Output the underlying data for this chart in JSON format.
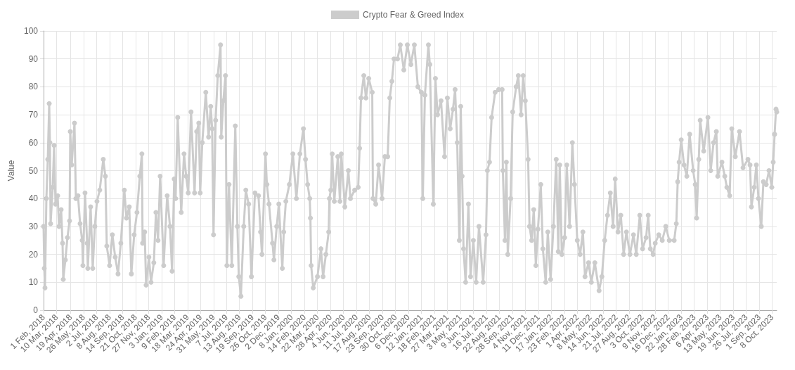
{
  "chart_data": {
    "type": "line",
    "ylabel": "Value",
    "ylim": [
      0,
      100
    ],
    "yticks": [
      0,
      10,
      20,
      30,
      40,
      50,
      60,
      70,
      80,
      90,
      100
    ],
    "xlim": [
      "2018-02-01",
      "2023-10-21"
    ],
    "xticks": [
      {
        "value": "2018-02-01",
        "label": "1 Feb, 2018"
      },
      {
        "value": "2018-03-10",
        "label": "10 Mar, 2018"
      },
      {
        "value": "2018-04-19",
        "label": "19 Apr, 2018"
      },
      {
        "value": "2018-05-26",
        "label": "26 May, 2018"
      },
      {
        "value": "2018-07-02",
        "label": "2 Jul, 2018"
      },
      {
        "value": "2018-08-08",
        "label": "8 Aug, 2018"
      },
      {
        "value": "2018-09-14",
        "label": "14 Sep, 2018"
      },
      {
        "value": "2018-10-21",
        "label": "21 Oct, 2018"
      },
      {
        "value": "2018-11-27",
        "label": "27 Nov, 2018"
      },
      {
        "value": "2019-01-03",
        "label": "3 Jan, 2019"
      },
      {
        "value": "2019-02-09",
        "label": "9 Feb, 2019"
      },
      {
        "value": "2019-03-18",
        "label": "18 Mar, 2019"
      },
      {
        "value": "2019-04-24",
        "label": "24 Apr, 2019"
      },
      {
        "value": "2019-05-31",
        "label": "31 May, 2019"
      },
      {
        "value": "2019-07-07",
        "label": "7 Jul, 2019"
      },
      {
        "value": "2019-08-13",
        "label": "13 Aug, 2019"
      },
      {
        "value": "2019-09-19",
        "label": "19 Sep, 2019"
      },
      {
        "value": "2019-10-26",
        "label": "26 Oct, 2019"
      },
      {
        "value": "2019-12-02",
        "label": "2 Dec, 2019"
      },
      {
        "value": "2020-01-08",
        "label": "8 Jan, 2020"
      },
      {
        "value": "2020-02-14",
        "label": "14 Feb, 2020"
      },
      {
        "value": "2020-03-22",
        "label": "22 Mar, 2020"
      },
      {
        "value": "2020-04-28",
        "label": "28 Apr, 2020"
      },
      {
        "value": "2020-06-04",
        "label": "4 Jun, 2020"
      },
      {
        "value": "2020-07-11",
        "label": "11 Jul, 2020"
      },
      {
        "value": "2020-08-17",
        "label": "17 Aug, 2020"
      },
      {
        "value": "2020-09-23",
        "label": "23 Sep, 2020"
      },
      {
        "value": "2020-10-30",
        "label": "30 Oct, 2020"
      },
      {
        "value": "2020-12-06",
        "label": "6 Dec, 2020"
      },
      {
        "value": "2021-01-12",
        "label": "12 Jan, 2021"
      },
      {
        "value": "2021-02-18",
        "label": "18 Feb, 2021"
      },
      {
        "value": "2021-03-27",
        "label": "27 Mar, 2021"
      },
      {
        "value": "2021-05-03",
        "label": "3 May, 2021"
      },
      {
        "value": "2021-06-09",
        "label": "9 Jun, 2021"
      },
      {
        "value": "2021-07-16",
        "label": "16 Jul, 2021"
      },
      {
        "value": "2021-08-22",
        "label": "22 Aug, 2021"
      },
      {
        "value": "2021-09-28",
        "label": "28 Sep, 2021"
      },
      {
        "value": "2021-11-04",
        "label": "4 Nov, 2021"
      },
      {
        "value": "2021-12-11",
        "label": "11 Dec, 2021"
      },
      {
        "value": "2022-01-17",
        "label": "17 Jan, 2022"
      },
      {
        "value": "2022-02-23",
        "label": "23 Feb, 2022"
      },
      {
        "value": "2022-04-01",
        "label": "1 Apr, 2022"
      },
      {
        "value": "2022-05-08",
        "label": "8 May, 2022"
      },
      {
        "value": "2022-06-14",
        "label": "14 Jun, 2022"
      },
      {
        "value": "2022-07-21",
        "label": "21 Jul, 2022"
      },
      {
        "value": "2022-08-27",
        "label": "27 Aug, 2022"
      },
      {
        "value": "2022-10-03",
        "label": "3 Oct, 2022"
      },
      {
        "value": "2022-11-09",
        "label": "9 Nov, 2022"
      },
      {
        "value": "2022-12-16",
        "label": "16 Dec, 2022"
      },
      {
        "value": "2023-01-22",
        "label": "22 Jan, 2023"
      },
      {
        "value": "2023-02-28",
        "label": "28 Feb, 2023"
      },
      {
        "value": "2023-04-06",
        "label": "6 Apr, 2023"
      },
      {
        "value": "2023-05-13",
        "label": "13 May, 2023"
      },
      {
        "value": "2023-06-19",
        "label": "19 Jun, 2023"
      },
      {
        "value": "2023-07-26",
        "label": "26 Jul, 2023"
      },
      {
        "value": "2023-09-01",
        "label": "1 Sep, 2023"
      },
      {
        "value": "2023-10-08",
        "label": "8 Oct, 2023"
      }
    ],
    "grid": true,
    "legend": "top",
    "marker": "circle",
    "line_style": "solid",
    "series": [
      {
        "name": "Crypto Fear & Greed Index",
        "color": "#cccccc",
        "x": [
          "2018-02-01",
          "2018-02-03",
          "2018-02-05",
          "2018-02-09",
          "2018-02-13",
          "2018-02-17",
          "2018-02-19",
          "2018-02-21",
          "2018-02-27",
          "2018-03-03",
          "2018-03-07",
          "2018-03-13",
          "2018-03-17",
          "2018-03-23",
          "2018-03-27",
          "2018-03-29",
          "2018-04-04",
          "2018-04-10",
          "2018-04-16",
          "2018-04-18",
          "2018-04-22",
          "2018-04-30",
          "2018-05-04",
          "2018-05-10",
          "2018-05-16",
          "2018-05-22",
          "2018-05-24",
          "2018-05-30",
          "2018-06-05",
          "2018-06-07",
          "2018-06-15",
          "2018-06-21",
          "2018-06-27",
          "2018-07-03",
          "2018-07-11",
          "2018-07-21",
          "2018-07-27",
          "2018-07-31",
          "2018-08-08",
          "2018-08-16",
          "2018-08-24",
          "2018-09-01",
          "2018-09-09",
          "2018-09-19",
          "2018-09-25",
          "2018-10-03",
          "2018-10-09",
          "2018-10-17",
          "2018-10-25",
          "2018-11-02",
          "2018-11-08",
          "2018-11-10",
          "2018-11-16",
          "2018-11-20",
          "2018-11-28",
          "2018-12-04",
          "2018-12-12",
          "2018-12-18",
          "2018-12-24",
          "2018-12-30",
          "2019-01-09",
          "2019-01-19",
          "2019-01-27",
          "2019-02-02",
          "2019-02-08",
          "2019-02-12",
          "2019-02-18",
          "2019-02-28",
          "2019-03-08",
          "2019-03-14",
          "2019-03-20",
          "2019-03-28",
          "2019-04-07",
          "2019-04-13",
          "2019-04-19",
          "2019-04-23",
          "2019-04-29",
          "2019-05-09",
          "2019-05-17",
          "2019-05-23",
          "2019-05-27",
          "2019-05-31",
          "2019-06-06",
          "2019-06-12",
          "2019-06-20",
          "2019-06-22",
          "2019-06-28",
          "2019-07-04",
          "2019-07-08",
          "2019-07-14",
          "2019-07-22",
          "2019-08-01",
          "2019-08-07",
          "2019-08-11",
          "2019-08-17",
          "2019-08-25",
          "2019-08-31",
          "2019-09-08",
          "2019-09-16",
          "2019-09-26",
          "2019-10-06",
          "2019-10-12",
          "2019-10-16",
          "2019-10-26",
          "2019-10-30",
          "2019-11-05",
          "2019-11-15",
          "2019-11-19",
          "2019-11-27",
          "2019-12-03",
          "2019-12-13",
          "2019-12-17",
          "2019-12-23",
          "2020-01-02",
          "2020-01-12",
          "2020-01-22",
          "2020-02-01",
          "2020-02-11",
          "2020-02-17",
          "2020-02-23",
          "2020-02-29",
          "2020-03-02",
          "2020-03-04",
          "2020-03-10",
          "2020-03-22",
          "2020-04-01",
          "2020-04-07",
          "2020-04-15",
          "2020-04-23",
          "2020-04-25",
          "2020-04-29",
          "2020-05-03",
          "2020-05-09",
          "2020-05-19",
          "2020-05-25",
          "2020-05-29",
          "2020-06-08",
          "2020-06-18",
          "2020-06-24",
          "2020-07-06",
          "2020-07-16",
          "2020-07-20",
          "2020-07-24",
          "2020-08-01",
          "2020-08-07",
          "2020-08-15",
          "2020-08-25",
          "2020-08-27",
          "2020-09-04",
          "2020-09-12",
          "2020-09-22",
          "2020-09-30",
          "2020-10-08",
          "2020-10-14",
          "2020-10-20",
          "2020-10-26",
          "2020-11-05",
          "2020-11-13",
          "2020-11-23",
          "2020-12-03",
          "2020-12-13",
          "2020-12-23",
          "2021-01-02",
          "2021-01-12",
          "2021-01-16",
          "2021-01-22",
          "2021-02-01",
          "2021-02-05",
          "2021-02-15",
          "2021-02-21",
          "2021-02-27",
          "2021-03-09",
          "2021-03-19",
          "2021-03-27",
          "2021-04-04",
          "2021-04-12",
          "2021-04-18",
          "2021-04-24",
          "2021-04-30",
          "2021-05-04",
          "2021-05-08",
          "2021-05-12",
          "2021-05-18",
          "2021-05-26",
          "2021-06-01",
          "2021-06-09",
          "2021-06-17",
          "2021-06-25",
          "2021-07-07",
          "2021-07-15",
          "2021-07-19",
          "2021-07-25",
          "2021-07-31",
          "2021-08-10",
          "2021-08-20",
          "2021-08-30",
          "2021-09-01",
          "2021-09-07",
          "2021-09-11",
          "2021-09-15",
          "2021-09-23",
          "2021-09-29",
          "2021-10-09",
          "2021-10-15",
          "2021-10-23",
          "2021-10-29",
          "2021-11-04",
          "2021-11-12",
          "2021-11-16",
          "2021-11-22",
          "2021-11-28",
          "2021-12-04",
          "2021-12-10",
          "2021-12-18",
          "2021-12-24",
          "2022-01-01",
          "2022-01-07",
          "2022-01-15",
          "2022-01-23",
          "2022-01-31",
          "2022-02-06",
          "2022-02-10",
          "2022-02-16",
          "2022-02-24",
          "2022-03-02",
          "2022-03-10",
          "2022-03-18",
          "2022-03-24",
          "2022-04-01",
          "2022-04-09",
          "2022-04-17",
          "2022-04-23",
          "2022-05-03",
          "2022-05-11",
          "2022-05-21",
          "2022-06-02",
          "2022-06-10",
          "2022-06-18",
          "2022-06-26",
          "2022-07-04",
          "2022-07-12",
          "2022-07-18",
          "2022-07-26",
          "2022-08-03",
          "2022-08-11",
          "2022-08-19",
          "2022-08-29",
          "2022-09-08",
          "2022-09-16",
          "2022-09-26",
          "2022-10-04",
          "2022-10-14",
          "2022-10-20",
          "2022-10-26",
          "2022-11-03",
          "2022-11-09",
          "2022-11-19",
          "2022-11-29",
          "2022-12-09",
          "2022-12-19",
          "2023-01-02",
          "2023-01-08",
          "2023-01-12",
          "2023-01-16",
          "2023-01-22",
          "2023-01-30",
          "2023-02-07",
          "2023-02-15",
          "2023-02-25",
          "2023-03-03",
          "2023-03-07",
          "2023-03-13",
          "2023-03-17",
          "2023-03-27",
          "2023-04-08",
          "2023-04-16",
          "2023-04-24",
          "2023-05-02",
          "2023-05-06",
          "2023-05-18",
          "2023-05-26",
          "2023-06-01",
          "2023-06-09",
          "2023-06-15",
          "2023-06-25",
          "2023-07-07",
          "2023-07-17",
          "2023-07-31",
          "2023-08-06",
          "2023-08-10",
          "2023-08-18",
          "2023-08-24",
          "2023-08-30",
          "2023-09-07",
          "2023-09-13",
          "2023-09-21",
          "2023-09-29",
          "2023-10-07",
          "2023-10-11",
          "2023-10-15",
          "2023-10-19",
          "2023-10-21"
        ],
        "values": [
          30,
          15,
          8,
          40,
          54,
          74,
          60,
          31,
          44,
          59,
          38,
          41,
          30,
          36,
          24,
          11,
          18,
          26,
          32,
          64,
          52,
          67,
          40,
          41,
          31,
          25,
          16,
          42,
          24,
          15,
          37,
          15,
          30,
          39,
          43,
          54,
          48,
          23,
          16,
          27,
          19,
          13,
          24,
          43,
          33,
          37,
          13,
          27,
          35,
          48,
          56,
          24,
          28,
          9,
          19,
          10,
          17,
          35,
          25,
          48,
          16,
          41,
          30,
          14,
          47,
          40,
          69,
          35,
          56,
          48,
          42,
          71,
          42,
          64,
          67,
          42,
          60,
          78,
          62,
          73,
          65,
          27,
          68,
          84,
          95,
          62,
          75,
          84,
          16,
          45,
          16,
          66,
          30,
          12,
          5,
          30,
          43,
          38,
          12,
          42,
          41,
          28,
          20,
          56,
          45,
          38,
          24,
          18,
          30,
          38,
          15,
          28,
          39,
          45,
          56,
          40,
          56,
          65,
          54,
          45,
          40,
          33,
          16,
          8,
          12,
          22,
          12,
          20,
          28,
          40,
          43,
          56,
          39,
          55,
          39,
          56,
          37,
          50,
          40,
          43,
          44,
          58,
          76,
          84,
          76,
          83,
          78,
          40,
          38,
          52,
          40,
          55,
          55,
          76,
          82,
          90,
          90,
          95,
          86,
          95,
          88,
          95,
          80,
          78,
          40,
          77,
          95,
          88,
          38,
          83,
          70,
          75,
          55,
          76,
          65,
          72,
          79,
          60,
          25,
          73,
          48,
          22,
          10,
          38,
          12,
          25,
          10,
          30,
          10,
          27,
          50,
          53,
          69,
          78,
          79,
          79,
          50,
          25,
          53,
          20,
          40,
          71,
          80,
          84,
          70,
          84,
          75,
          54,
          30,
          25,
          36,
          16,
          29,
          45,
          22,
          10,
          28,
          11,
          30,
          54,
          21,
          52,
          20,
          26,
          52,
          30,
          60,
          45,
          25,
          20,
          28,
          12,
          17,
          10,
          17,
          7,
          12,
          25,
          34,
          42,
          30,
          47,
          28,
          34,
          20,
          28,
          20,
          27,
          20,
          34,
          22,
          26,
          34,
          22,
          20,
          24,
          27,
          25,
          30,
          25,
          25,
          31,
          46,
          53,
          61,
          52,
          48,
          63,
          50,
          45,
          33,
          54,
          68,
          57,
          69,
          50,
          60,
          64,
          48,
          53,
          48,
          44,
          41,
          65,
          55,
          64,
          51,
          54,
          52,
          37,
          44,
          52,
          40,
          30,
          46,
          45,
          50,
          44,
          53,
          63,
          72,
          71
        ]
      }
    ]
  }
}
